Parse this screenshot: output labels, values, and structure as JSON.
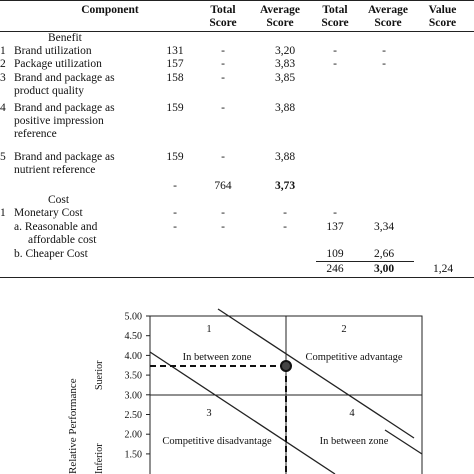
{
  "table": {
    "headers": {
      "component": "Component",
      "total_score_1": [
        "Total",
        "Score"
      ],
      "average_score_1": [
        "Average",
        "Score"
      ],
      "total_score_2": [
        "Total",
        "Score"
      ],
      "average_score_2": [
        "Average",
        "Score"
      ],
      "value_score": [
        "Value",
        "Score"
      ]
    },
    "benefit_label": "Benefit",
    "benefit_rows": [
      {
        "no": "1",
        "label": [
          "Brand utilization"
        ],
        "count": "131",
        "total": "-",
        "avg": "3,20",
        "total2": "-",
        "avg2": "-"
      },
      {
        "no": "2",
        "label": [
          "Package utilization"
        ],
        "count": "157",
        "total": "-",
        "avg": "3,83",
        "total2": "-",
        "avg2": "-"
      },
      {
        "no": "3",
        "label": [
          "Brand and package as",
          "product quality"
        ],
        "count": "158",
        "total": "-",
        "avg": "3,85",
        "total2": "",
        "avg2": ""
      },
      {
        "no": "4",
        "label": [
          "Brand and package as",
          "positive impression",
          "reference"
        ],
        "count": "159",
        "total": "-",
        "avg": "3,88",
        "total2": "",
        "avg2": ""
      },
      {
        "no": "5",
        "label": [
          "Brand and package as",
          "nutrient reference"
        ],
        "count": "159",
        "total": "-",
        "avg": "3,88",
        "total2": "",
        "avg2": ""
      }
    ],
    "benefit_summary": {
      "count": "-",
      "total": "764",
      "avg": "3,73"
    },
    "cost_label": "Cost",
    "cost_rows": [
      {
        "no": "1",
        "label": [
          "Monetary Cost"
        ],
        "count": "-",
        "total": "-",
        "avg": "-",
        "total2": "-",
        "avg2": ""
      },
      {
        "no": "",
        "label": [
          "a. Reasonable and",
          "affordable cost"
        ],
        "count": "-",
        "total": "-",
        "avg": "-",
        "total2": "137",
        "avg2": "3,34"
      },
      {
        "no": "",
        "label": [
          "b. Cheaper Cost"
        ],
        "count": "",
        "total": "",
        "avg": "",
        "total2": "109",
        "avg2": "2,66"
      }
    ],
    "cost_summary": {
      "total2": "246",
      "avg2": "3,00",
      "value": "1,24"
    }
  },
  "chart_data": {
    "type": "diagram",
    "y_ticks": [
      "5.00",
      "4.50",
      "4.00",
      "3.50",
      "3.00",
      "2.50",
      "2.00",
      "1.50"
    ],
    "y_range": [
      1.5,
      5.0
    ],
    "ylabel": "Relative Performance",
    "y_side_labels": [
      "Suerior",
      "Inferior"
    ],
    "quadrants": [
      {
        "number": "1",
        "label": "In between zone"
      },
      {
        "number": "2",
        "label": "Competitive advantage"
      },
      {
        "number": "3",
        "label": "Competitive disadvantage"
      },
      {
        "number": "4",
        "label": "In between zone"
      }
    ],
    "point": {
      "y": 3.73
    }
  }
}
